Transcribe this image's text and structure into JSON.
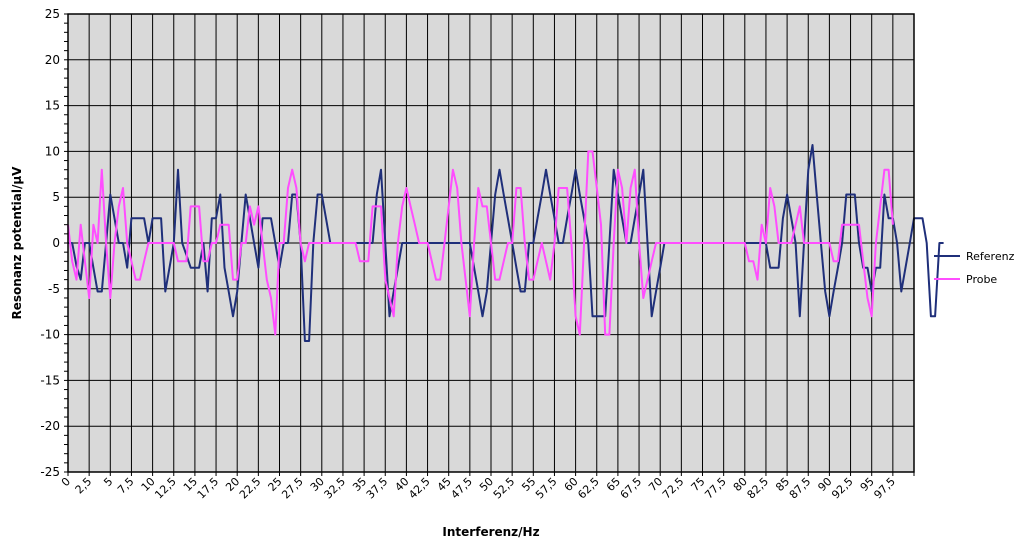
{
  "chart_data": {
    "type": "line",
    "xlabel": "Interferenz/Hz",
    "ylabel": "Resonanz potential/µV",
    "ylim": [
      -25,
      25
    ],
    "yticks": [
      -25,
      -20,
      -15,
      -10,
      -5,
      0,
      5,
      10,
      15,
      20,
      25
    ],
    "x_tick_labels": [
      "0",
      "2,5",
      "5",
      "7,5",
      "10",
      "12,5",
      "15",
      "17,5",
      "20",
      "22,5",
      "25",
      "27,5",
      "30",
      "32,5",
      "35",
      "37,5",
      "40",
      "42,5",
      "45",
      "47,5",
      "50",
      "52,5",
      "55",
      "57,5",
      "60",
      "62,5",
      "65",
      "67,5",
      "70",
      "72,5",
      "75",
      "77,5",
      "80",
      "82,5",
      "85",
      "87,5",
      "90",
      "92,5",
      "95",
      "97,5"
    ],
    "x_step": 0.5,
    "grid": true,
    "background_color": "#d9d9d9",
    "legend_position": "right",
    "series": [
      {
        "name": "Referenz",
        "color": "#1f2f7a",
        "values": [
          0,
          0,
          -2.5,
          -4,
          0,
          0,
          -2.7,
          -5.3,
          -5.3,
          0,
          5.3,
          2.7,
          0,
          0,
          -2.7,
          2.7,
          2.7,
          2.7,
          2.7,
          0,
          2.7,
          2.7,
          2.7,
          -5.3,
          -2.7,
          0,
          8,
          0,
          -1.3,
          -2.7,
          -2.7,
          -2.7,
          0,
          -5.3,
          2.7,
          2.7,
          5.3,
          -2.7,
          -5.3,
          -8,
          -5.3,
          0,
          5.3,
          2.7,
          0,
          -2.7,
          2.7,
          2.7,
          2.7,
          0,
          -2.7,
          0,
          0,
          5.3,
          5.3,
          0,
          -10.7,
          -10.7,
          0,
          5.3,
          5.3,
          2.7,
          0,
          0,
          0,
          0,
          0,
          0,
          0,
          0,
          0,
          0,
          0,
          5.3,
          8,
          0,
          -8,
          -5.3,
          -2.7,
          0,
          0,
          0,
          0,
          0,
          0,
          0,
          0,
          0,
          0,
          0,
          0,
          0,
          0,
          0,
          0,
          0,
          -2.7,
          -5.3,
          -8,
          -5.3,
          0,
          5.3,
          8,
          5.3,
          2.7,
          0,
          -2.7,
          -5.3,
          -5.3,
          0,
          0,
          2.7,
          5.3,
          8,
          5.3,
          2.7,
          0,
          0,
          2.7,
          5.3,
          8,
          5.3,
          2.7,
          0,
          -8,
          -8,
          -8,
          -8,
          0,
          8,
          5.3,
          2.7,
          0,
          0,
          2.7,
          5.3,
          8,
          0,
          -8,
          -5.3,
          -2.7,
          0,
          0,
          0,
          0,
          0,
          0,
          0,
          0,
          0,
          0,
          0,
          0,
          0,
          0,
          0,
          0,
          0,
          0,
          0,
          0,
          0,
          0,
          0,
          0,
          0,
          -2.7,
          -2.7,
          -2.7,
          2.7,
          5.3,
          2.7,
          0,
          -8,
          0,
          8,
          10.7,
          5.3,
          0,
          -5.3,
          -8,
          -5.3,
          -2.7,
          0,
          5.3,
          5.3,
          5.3,
          0,
          -2.7,
          -2.7,
          -5.3,
          -2.7,
          -2.7,
          5.3,
          2.7,
          2.7,
          0,
          -5.3,
          -2.7,
          0,
          2.7,
          2.7,
          2.7,
          0,
          -8,
          -8,
          0,
          0
        ]
      },
      {
        "name": "Probe",
        "color": "#ff4dff",
        "values": [
          2,
          -2,
          -4,
          2,
          -2,
          -6,
          2,
          0,
          8,
          0,
          -6,
          0,
          4,
          6,
          0,
          -2,
          -4,
          -4,
          -2,
          0,
          0,
          0,
          0,
          0,
          0,
          0,
          -2,
          -2,
          -2,
          4,
          4,
          4,
          -2,
          -2,
          0,
          0,
          2,
          2,
          2,
          -4,
          -4,
          0,
          0,
          4,
          2,
          4,
          0,
          -4,
          -6,
          -10,
          0,
          0,
          6,
          8,
          6,
          0,
          -2,
          0,
          0,
          0,
          0,
          0,
          0,
          0,
          0,
          0,
          0,
          0,
          0,
          -2,
          -2,
          -2,
          4,
          4,
          4,
          -4,
          -6,
          -8,
          0,
          4,
          6,
          4,
          2,
          0,
          0,
          0,
          -2,
          -4,
          -4,
          0,
          4,
          8,
          6,
          0,
          -4,
          -8,
          0,
          6,
          4,
          4,
          0,
          -4,
          -4,
          -2,
          0,
          0,
          6,
          6,
          0,
          -4,
          -4,
          -2,
          0,
          -2,
          -4,
          0,
          6,
          6,
          6,
          0,
          -8,
          -10,
          0,
          10,
          10,
          6,
          2,
          -10,
          -10,
          0,
          8,
          6,
          0,
          6,
          8,
          0,
          -6,
          -4,
          -2,
          0,
          0,
          0,
          0,
          0,
          0,
          0,
          0,
          0,
          0,
          0,
          0,
          0,
          0,
          0,
          0,
          0,
          0,
          0,
          0,
          0,
          0,
          -2,
          -2,
          -4,
          2,
          0,
          6,
          4,
          0,
          0,
          0,
          0,
          2,
          4,
          0,
          0,
          0,
          0,
          0,
          0,
          0,
          -2,
          -2,
          2,
          2,
          2,
          2,
          2,
          -2,
          -6,
          -8,
          0,
          4,
          8,
          8,
          2
        ]
      }
    ]
  }
}
